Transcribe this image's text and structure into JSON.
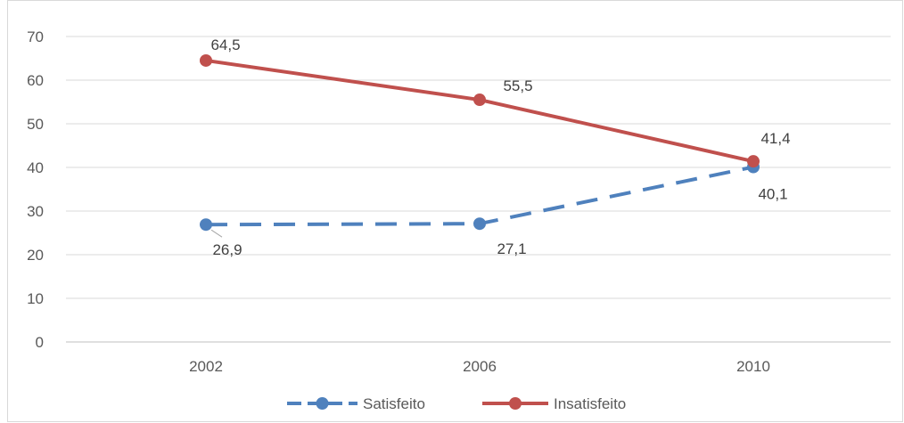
{
  "chart_data": {
    "type": "line",
    "title": "",
    "xlabel": "",
    "ylabel": "",
    "categories": [
      "2002",
      "2006",
      "2010"
    ],
    "ylim": [
      0,
      70
    ],
    "yticks": [
      0,
      10,
      20,
      30,
      40,
      50,
      60,
      70
    ],
    "ytick_labels": [
      "0",
      "10",
      "20",
      "30",
      "40",
      "50",
      "60",
      "70"
    ],
    "grid": "horizontal",
    "legend_position": "bottom",
    "series": [
      {
        "name": "Satisfeito",
        "values": [
          26.9,
          27.1,
          40.1
        ],
        "labels": [
          "26,9",
          "27,1",
          "40,1"
        ],
        "color": "#4f81bd",
        "line_style": "dashed",
        "marker": "circle"
      },
      {
        "name": "Insatisfeito",
        "values": [
          64.5,
          55.5,
          41.4
        ],
        "labels": [
          "64,5",
          "55,5",
          "41,4"
        ],
        "color": "#c0504d",
        "line_style": "solid",
        "marker": "circle"
      }
    ]
  }
}
